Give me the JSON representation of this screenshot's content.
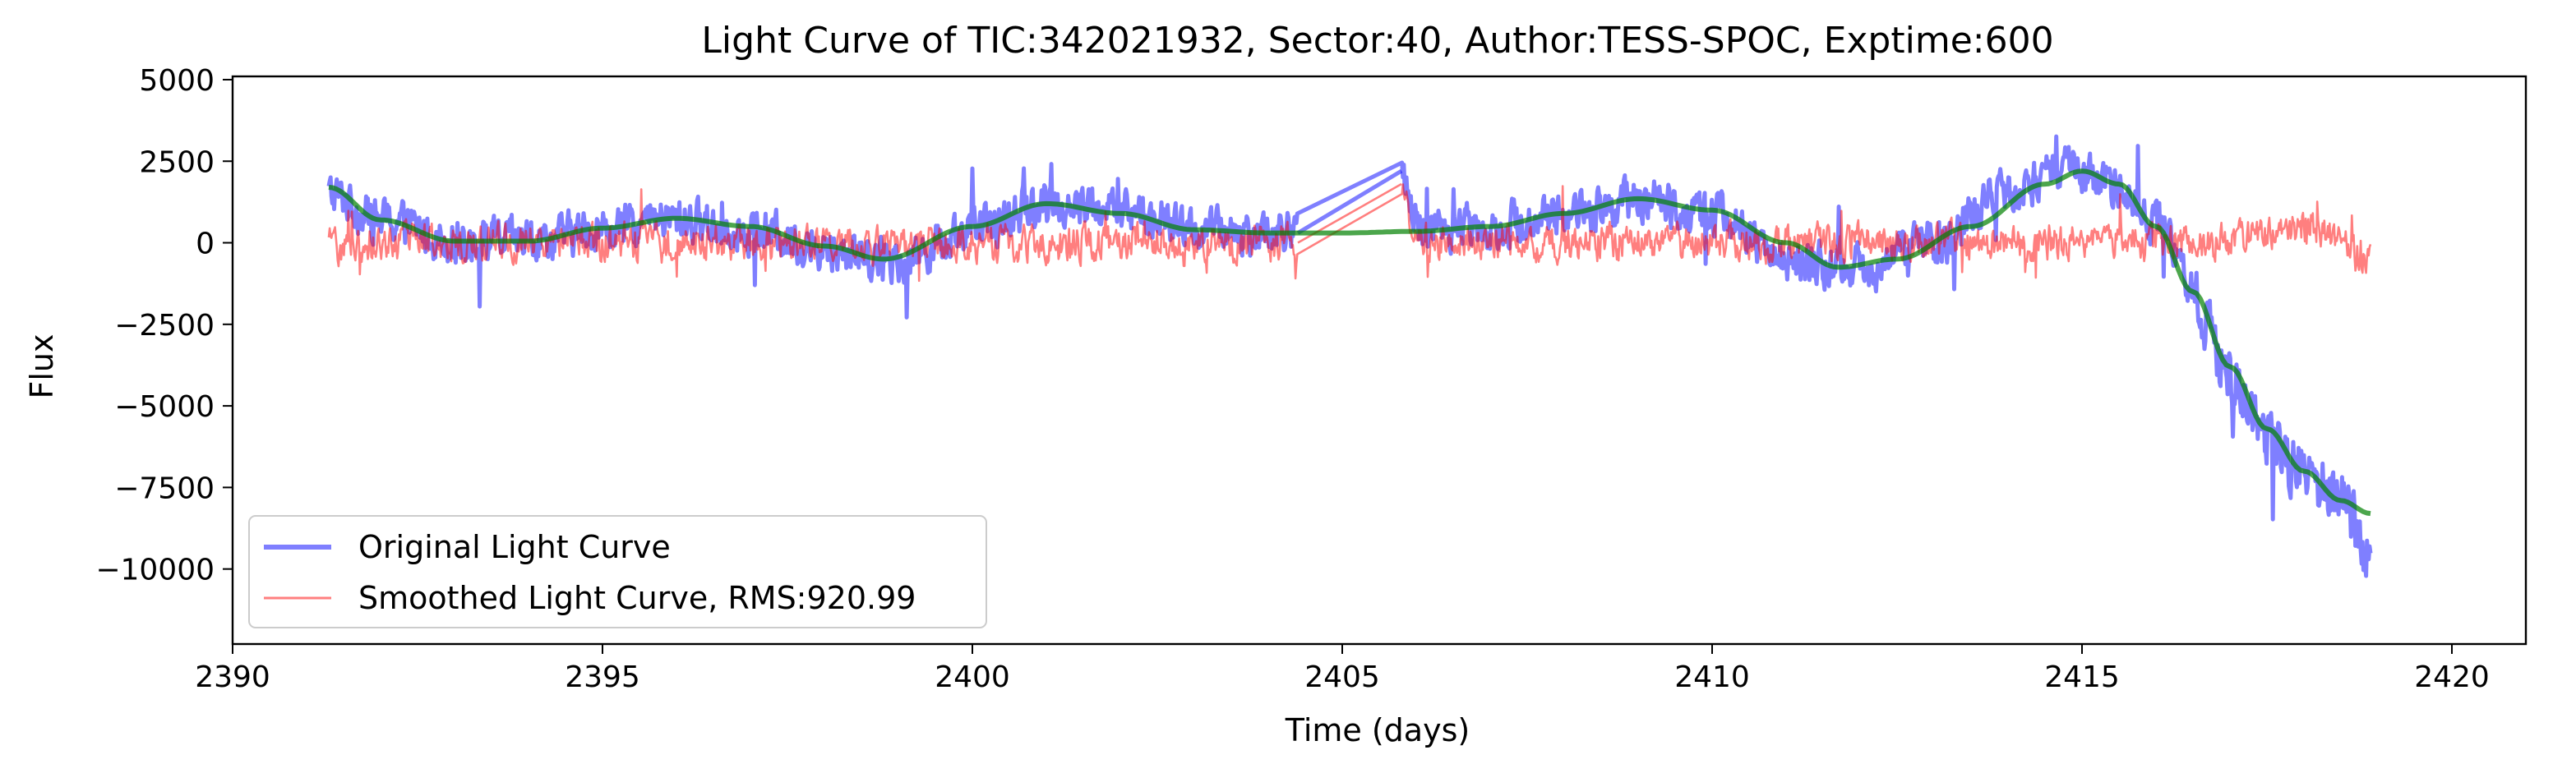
{
  "chart_data": {
    "type": "line",
    "title": "Light Curve of TIC:342021932, Sector:40, Author:TESS-SPOC, Exptime:600",
    "xlabel": "Time (days)",
    "ylabel": "Flux",
    "xlim": [
      2390.0,
      2421.0
    ],
    "ylim": [
      -12300,
      5100
    ],
    "xticks": [
      2390,
      2395,
      2400,
      2405,
      2410,
      2415,
      2420
    ],
    "yticks": [
      5000,
      2500,
      0,
      -2500,
      -5000,
      -7500,
      -10000
    ],
    "ytick_labels": [
      "5000",
      "2500",
      "0",
      "−2500",
      "−5000",
      "−7500",
      "−10000"
    ],
    "grid": false,
    "legend_position": "lower-left",
    "series": [
      {
        "name": "Original Light Curve",
        "color": "#0000ff",
        "alpha": 0.5,
        "noise": 1000,
        "x": [
          2391.3,
          2392.0,
          2393.0,
          2394.0,
          2395.0,
          2396.0,
          2397.0,
          2398.0,
          2399.0,
          2400.0,
          2401.0,
          2402.0,
          2403.0,
          2404.0,
          2404.4,
          2405.8,
          2406.0,
          2407.0,
          2408.0,
          2409.0,
          2410.0,
          2411.0,
          2412.0,
          2413.0,
          2414.0,
          2414.8,
          2415.5,
          2416.0,
          2416.5,
          2417.0,
          2417.5,
          2418.0,
          2418.5,
          2418.9
        ],
        "y": [
          1500,
          700,
          100,
          50,
          400,
          700,
          400,
          -200,
          -500,
          400,
          1200,
          1000,
          400,
          300,
          300,
          2200,
          500,
          500,
          900,
          1300,
          900,
          -500,
          -800,
          0,
          1600,
          2200,
          1800,
          600,
          -1500,
          -4000,
          -6000,
          -7000,
          -8000,
          -9500
        ]
      },
      {
        "name": "Smoothed Light Curve, RMS:920.99",
        "color": "#ff0000",
        "alpha": 0.5,
        "noise": 850,
        "x": [
          2391.3,
          2392.0,
          2393.0,
          2394.0,
          2395.0,
          2396.0,
          2397.0,
          2398.0,
          2399.0,
          2400.0,
          2401.0,
          2402.0,
          2403.0,
          2404.0,
          2404.4,
          2405.8,
          2406.0,
          2407.0,
          2408.0,
          2409.0,
          2410.0,
          2411.0,
          2412.0,
          2413.0,
          2414.0,
          2415.0,
          2416.0,
          2417.0,
          2418.0,
          2418.9
        ],
        "y": [
          -100,
          0,
          0,
          0,
          0,
          0,
          0,
          0,
          0,
          0,
          0,
          0,
          0,
          0,
          0,
          1800,
          0,
          0,
          0,
          0,
          0,
          0,
          0,
          0,
          0,
          0,
          0,
          0,
          500,
          -500
        ]
      },
      {
        "name": "",
        "color": "#008000",
        "alpha": 0.7,
        "noise": 0,
        "x": [
          2391.3,
          2392.0,
          2393.0,
          2394.0,
          2395.0,
          2396.0,
          2397.0,
          2398.0,
          2398.8,
          2400.0,
          2401.0,
          2402.0,
          2403.0,
          2404.0,
          2405.0,
          2406.0,
          2407.0,
          2408.0,
          2409.0,
          2410.0,
          2411.0,
          2411.7,
          2412.5,
          2413.5,
          2414.5,
          2415.0,
          2415.5,
          2416.0,
          2416.5,
          2417.0,
          2417.5,
          2418.0,
          2418.5,
          2418.9
        ],
        "y": [
          1700,
          700,
          50,
          50,
          450,
          750,
          500,
          -100,
          -500,
          500,
          1200,
          900,
          400,
          300,
          300,
          350,
          500,
          900,
          1350,
          1000,
          0,
          -750,
          -500,
          500,
          1800,
          2200,
          1800,
          500,
          -1500,
          -3800,
          -5700,
          -7000,
          -7900,
          -8300
        ]
      }
    ]
  }
}
